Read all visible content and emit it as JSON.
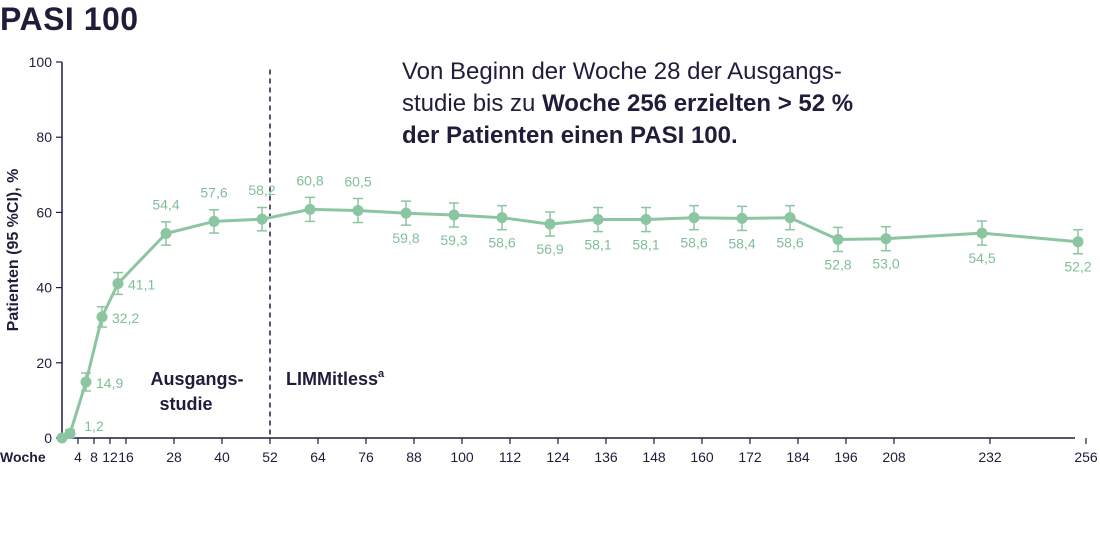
{
  "title": "PASI 100",
  "headline": {
    "line1": "Von Beginn der Woche 28 der Ausgangs-",
    "line2_plain": "studie bis zu ",
    "line2_bold": "Woche 256 erzielten > 52 %",
    "line3_bold": "der Patienten einen PASI 100."
  },
  "colors": {
    "series": "#8cc5a1",
    "label": "#7fbf97",
    "axis": "#1f1d3a",
    "text": "#1f1d3a"
  },
  "chart_data": {
    "type": "line",
    "title": "PASI 100",
    "ylabel": "Patienten (95 %CI), %",
    "xlabel": "Woche",
    "ylim": [
      0,
      100
    ],
    "yticks": [
      0,
      20,
      40,
      60,
      80,
      100
    ],
    "xticks": [
      4,
      8,
      12,
      16,
      28,
      40,
      52,
      64,
      76,
      88,
      100,
      112,
      124,
      136,
      148,
      160,
      172,
      184,
      196,
      208,
      232,
      256
    ],
    "divider_week": 52,
    "phases": [
      {
        "line1": "Ausgangs-",
        "line2": "studie"
      },
      {
        "line1": "LIMMitless",
        "sup": "a"
      }
    ],
    "series": [
      {
        "x": [
          0,
          2,
          6,
          10,
          14,
          26,
          38,
          50,
          62,
          74,
          86,
          98,
          110,
          122,
          134,
          146,
          158,
          170,
          182,
          194,
          206,
          230,
          254
        ],
        "values": [
          0,
          1.2,
          14.9,
          32.2,
          41.1,
          54.4,
          57.6,
          58.2,
          60.8,
          60.5,
          59.8,
          59.3,
          58.6,
          56.9,
          58.1,
          58.1,
          58.6,
          58.4,
          58.6,
          52.8,
          53.0,
          54.5,
          52.2
        ],
        "labels": [
          "",
          "1,2",
          "14,9",
          "32,2",
          "41,1",
          "54,4",
          "57,6",
          "58,2",
          "60,8",
          "60,5",
          "59,8",
          "59,3",
          "58,6",
          "56,9",
          "58,1",
          "58,1",
          "58,6",
          "58,4",
          "58,6",
          "52,8",
          "53,0",
          "54,5",
          "52,2"
        ],
        "ci_low": [
          0,
          0.2,
          12.5,
          29.5,
          38.2,
          51.3,
          54.5,
          55.1,
          57.6,
          57.3,
          56.6,
          56.1,
          55.4,
          53.7,
          54.9,
          54.9,
          55.4,
          55.2,
          55.4,
          49.6,
          49.8,
          51.3,
          49.0
        ],
        "ci_high": [
          0,
          2.2,
          17.3,
          34.9,
          44.0,
          57.5,
          60.7,
          61.3,
          64.0,
          63.7,
          63.0,
          62.5,
          61.8,
          60.1,
          61.3,
          61.3,
          61.8,
          61.6,
          61.8,
          56.0,
          56.2,
          57.7,
          55.4
        ]
      }
    ]
  }
}
